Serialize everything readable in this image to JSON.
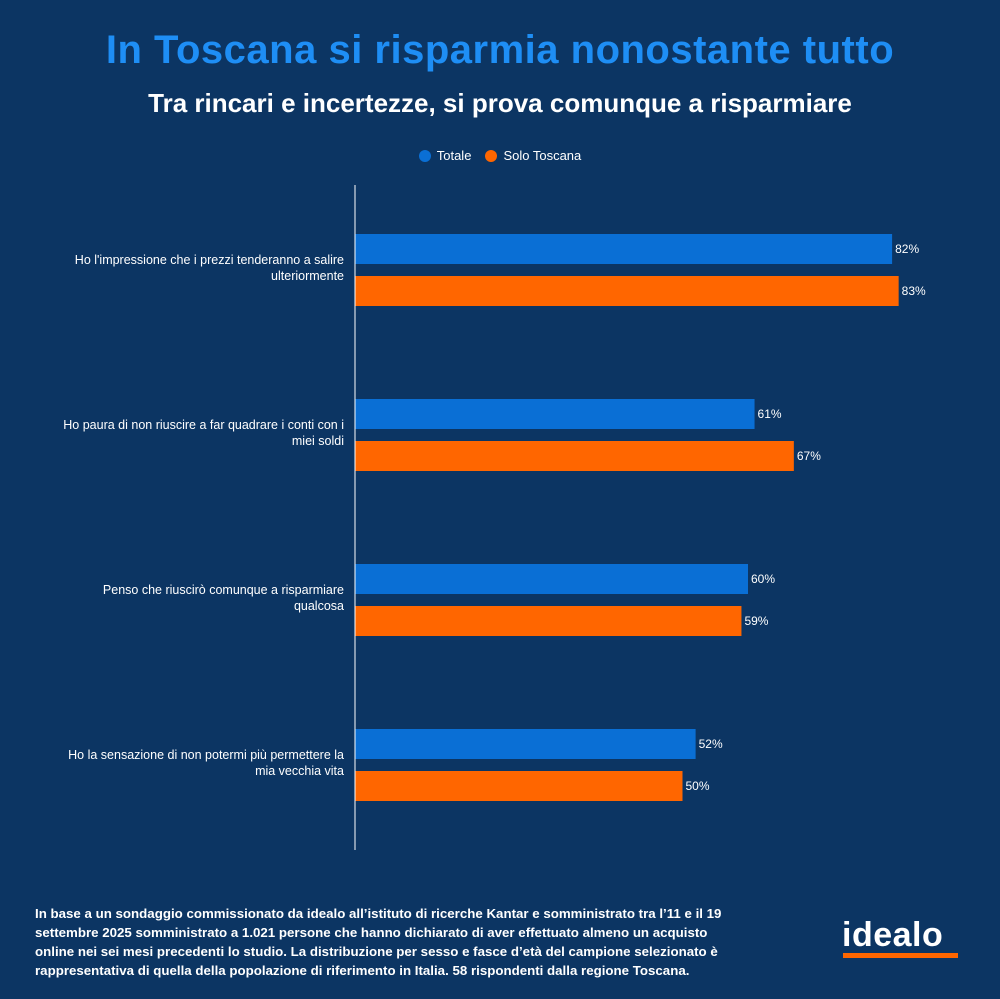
{
  "title": "In Toscana si risparmia nonostante tutto",
  "subtitle": "Tra rincari e incertezze, si prova comunque a risparmiare",
  "colors": {
    "background": "#0c3563",
    "totale": "#0a6fd5",
    "toscana": "#ff6600",
    "title": "#1e8ef5"
  },
  "chart_data": {
    "type": "bar",
    "orientation": "horizontal",
    "categories": [
      [
        "Ho l'impressione che i prezzi tenderanno a salire",
        "ulteriormente"
      ],
      [
        "Ho paura di non riuscire a far quadrare i conti con i",
        "miei soldi"
      ],
      [
        "Penso che riuscirò comunque a risparmiare",
        "qualcosa"
      ],
      [
        "Ho la sensazione di non potermi più permettere la",
        "mia vecchia vita"
      ]
    ],
    "series": [
      {
        "name": "Totale",
        "color": "#0a6fd5",
        "values": [
          82,
          61,
          60,
          52
        ],
        "labels": [
          "82%",
          "61%",
          "60%",
          "52%"
        ]
      },
      {
        "name": "Solo Toscana",
        "color": "#ff6600",
        "values": [
          83,
          67,
          59,
          50
        ],
        "labels": [
          "83%",
          "67%",
          "59%",
          "50%"
        ]
      }
    ],
    "xlim": [
      0,
      100
    ],
    "legend_position": "top-center",
    "grid": false
  },
  "footnote": "In base a un sondaggio commissionato da idealo all’istituto di ricerche Kantar e somministrato tra l’11 e il 19 settembre 2025 somministrato a 1.021 persone che hanno dichiarato di aver effettuato almeno un acquisto online nei sei mesi precedenti lo studio. La distribuzione per sesso e fasce d’età del campione selezionato è rappresentativa di quella della popolazione di riferimento in Italia. 58 rispondenti dalla regione Toscana.",
  "logo": {
    "text": "idealo"
  }
}
